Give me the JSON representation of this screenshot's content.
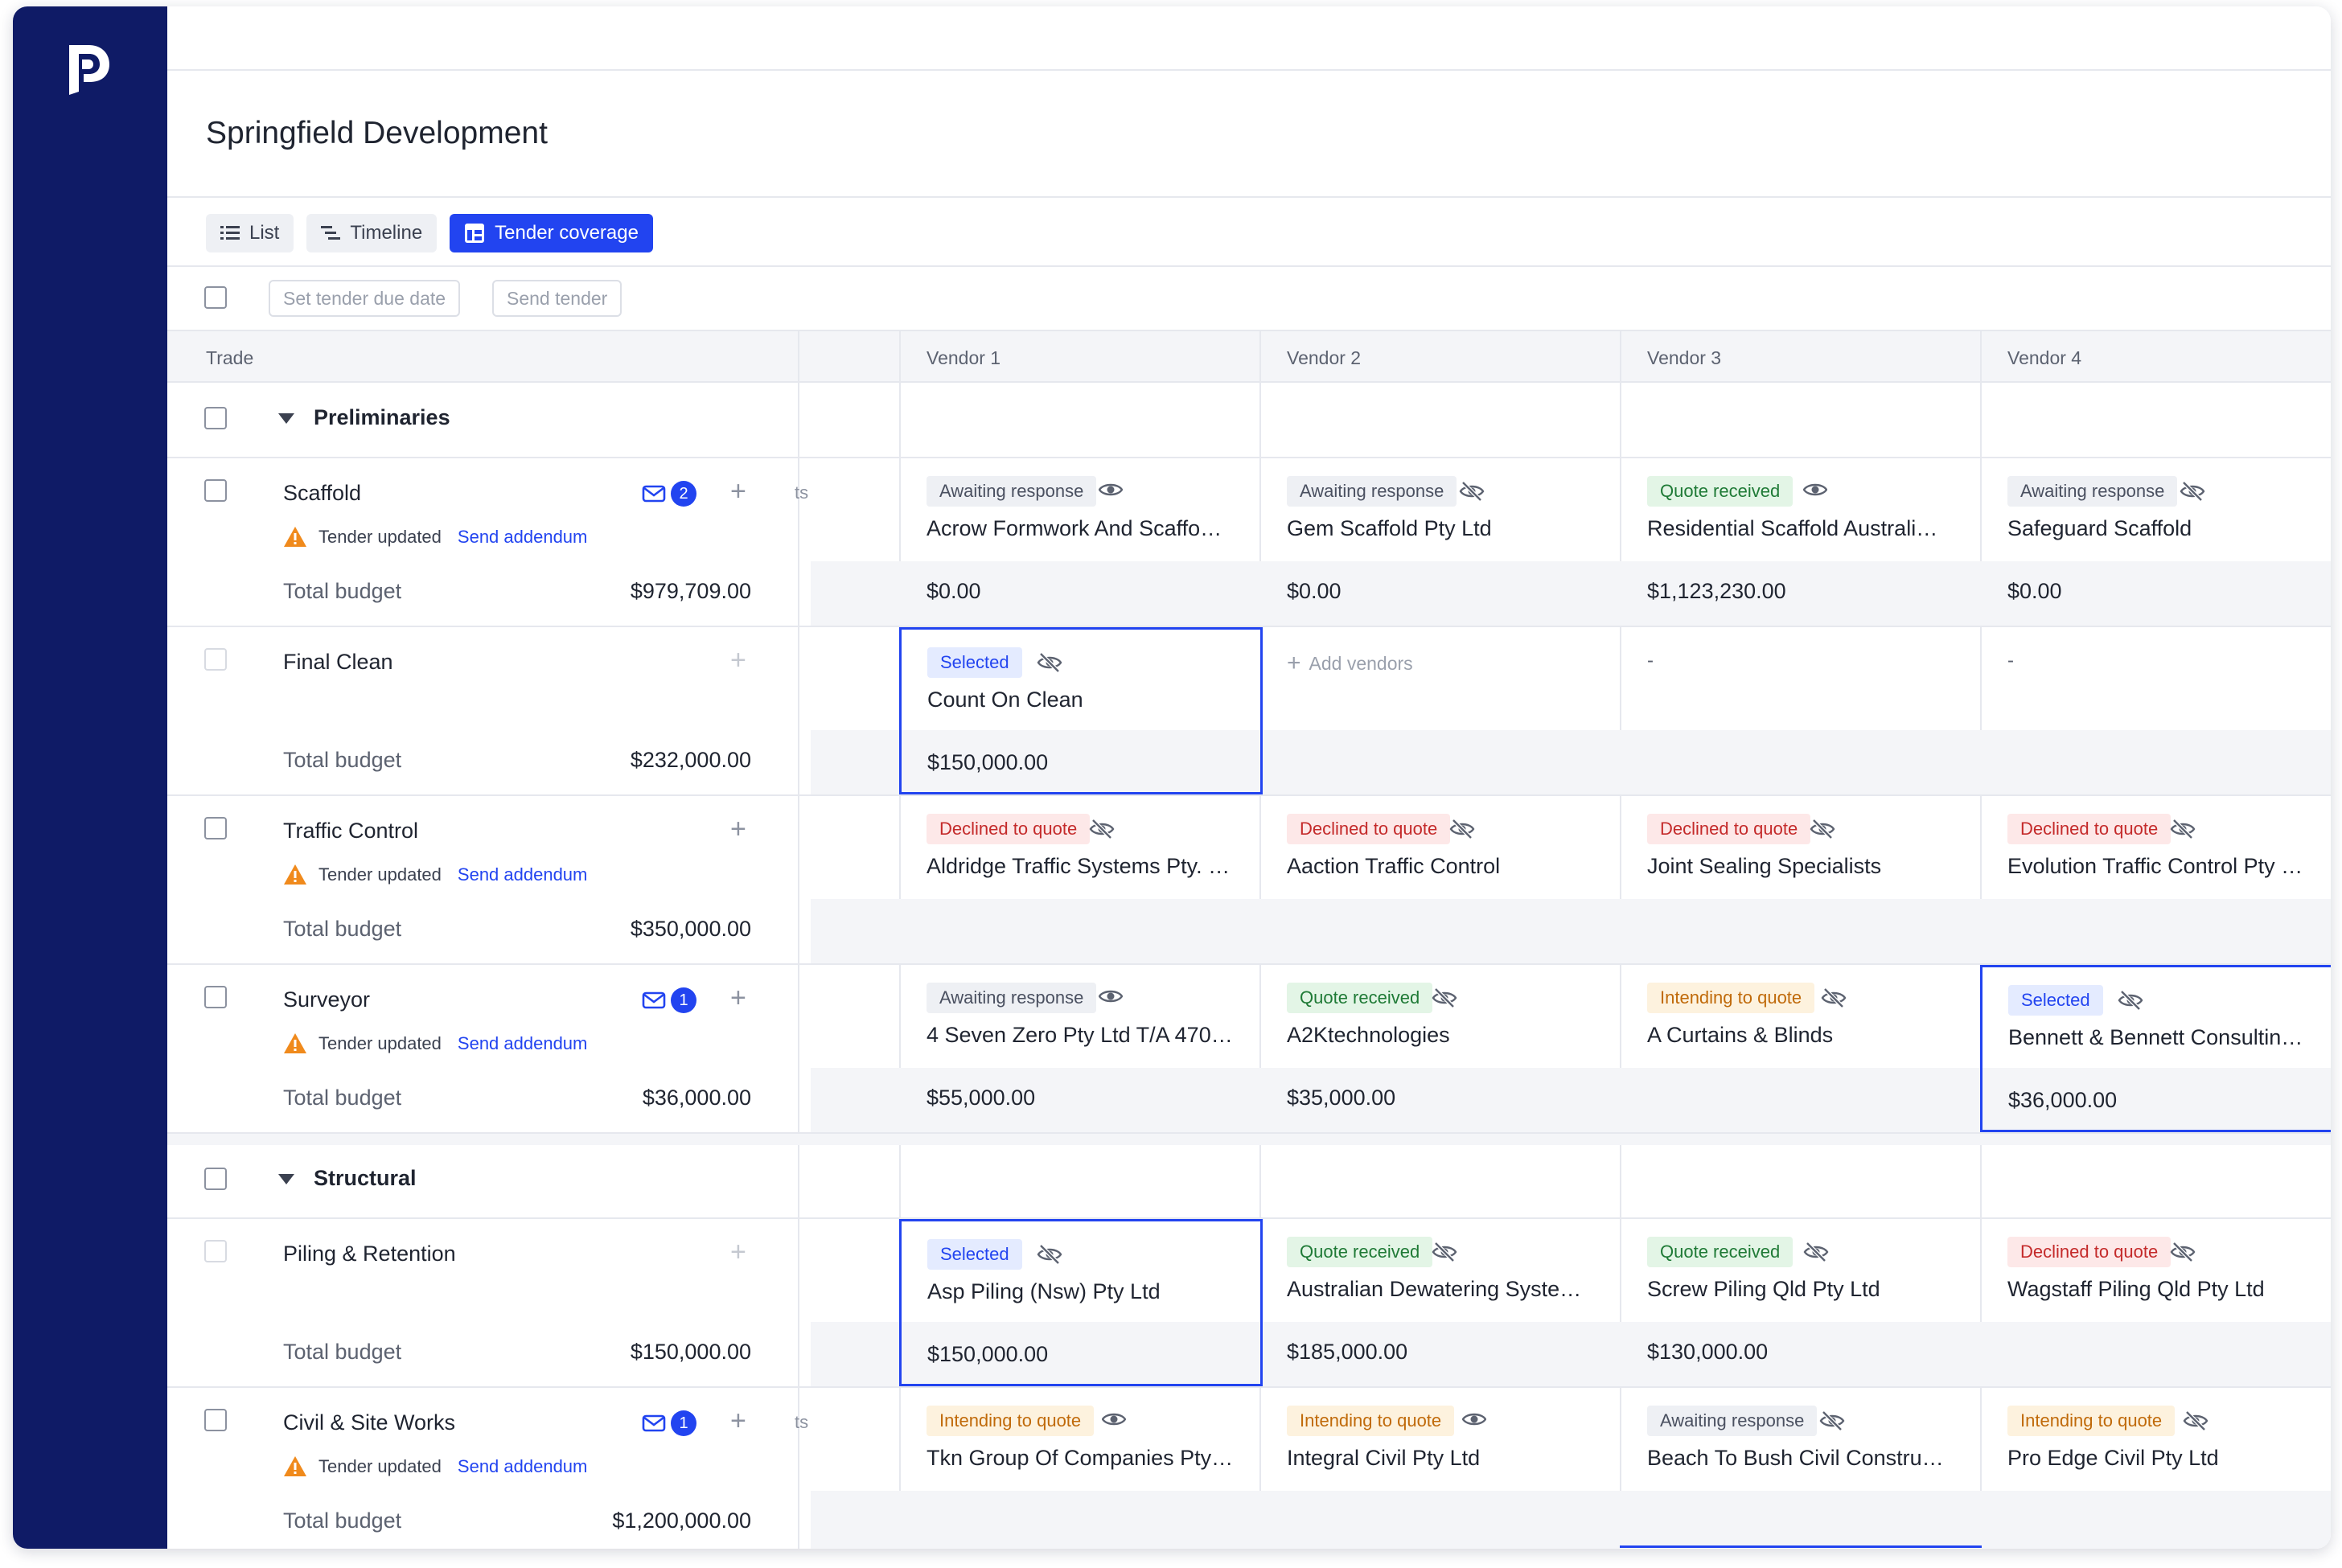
{
  "project": {
    "title": "Springfield Development"
  },
  "tabs": [
    {
      "label": "List",
      "active": false
    },
    {
      "label": "Timeline",
      "active": false
    },
    {
      "label": "Tender coverage",
      "active": true
    }
  ],
  "toolbar": {
    "set_due_date": "Set tender due date",
    "send_tender": "Send tender"
  },
  "columns": {
    "trade": "Trade",
    "vendor1": "Vendor 1",
    "vendor2": "Vendor 2",
    "vendor3": "Vendor 3",
    "vendor4": "Vendor 4"
  },
  "labels": {
    "total_budget": "Total budget",
    "tender_updated": "Tender updated",
    "send_addendum": "Send addendum",
    "add_vendors": "Add vendors",
    "dash": "-",
    "cut_off": "ts"
  },
  "groups": [
    {
      "name": "Preliminaries"
    },
    {
      "name": "Structural"
    }
  ],
  "trades": [
    {
      "name": "Scaffold",
      "total": "$979,709.00",
      "messages": "2",
      "vendors": [
        {
          "status": "Awaiting response",
          "name": "Acrow Formwork And Scaffo…",
          "value": "$0.00"
        },
        {
          "status": "Awaiting response",
          "name": "Gem Scaffold Pty Ltd",
          "value": "$0.00"
        },
        {
          "status": "Quote received",
          "name": "Residential Scaffold Australi…",
          "value": "$1,123,230.00"
        },
        {
          "status": "Awaiting response",
          "name": "Safeguard Scaffold",
          "value": "$0.00"
        }
      ]
    },
    {
      "name": "Final Clean",
      "total": "$232,000.00",
      "vendors": [
        {
          "status": "Selected",
          "name": "Count On Clean",
          "value": "$150,000.00"
        }
      ]
    },
    {
      "name": "Traffic Control",
      "total": "$350,000.00",
      "vendors": [
        {
          "status": "Declined to quote",
          "name": "Aldridge Traffic Systems Pty. …"
        },
        {
          "status": "Declined to quote",
          "name": "Aaction Traffic Control"
        },
        {
          "status": "Declined to quote",
          "name": "Joint Sealing Specialists"
        },
        {
          "status": "Declined to quote",
          "name": "Evolution Traffic Control Pty …"
        }
      ]
    },
    {
      "name": "Surveyor",
      "total": "$36,000.00",
      "messages": "1",
      "vendors": [
        {
          "status": "Awaiting response",
          "name": "4 Seven Zero Pty Ltd T/A 470…",
          "value": "$55,000.00"
        },
        {
          "status": "Quote received",
          "name": "A2Ktechnologies",
          "value": "$35,000.00"
        },
        {
          "status": "Intending to quote",
          "name": "A Curtains & Blinds"
        },
        {
          "status": "Selected",
          "name": "Bennett & Bennett Consultin…",
          "value": "$36,000.00"
        }
      ]
    },
    {
      "name": "Piling & Retention",
      "total": "$150,000.00",
      "vendors": [
        {
          "status": "Selected",
          "name": "Asp Piling (Nsw) Pty Ltd",
          "value": "$150,000.00"
        },
        {
          "status": "Quote received",
          "name": "Australian Dewatering Syste…",
          "value": "$185,000.00"
        },
        {
          "status": "Quote received",
          "name": "Screw Piling Qld Pty Ltd",
          "value": "$130,000.00"
        },
        {
          "status": "Declined to quote",
          "name": "Wagstaff Piling Qld Pty Ltd"
        }
      ]
    },
    {
      "name": "Civil & Site Works",
      "total": "$1,200,000.00",
      "messages": "1",
      "vendors": [
        {
          "status": "Intending to quote",
          "name": "Tkn Group Of Companies Pty…"
        },
        {
          "status": "Intending to quote",
          "name": "Integral Civil Pty Ltd"
        },
        {
          "status": "Awaiting response",
          "name": "Beach To Bush Civil Constru…"
        },
        {
          "status": "Intending to quote",
          "name": "Pro Edge Civil Pty Ltd"
        }
      ]
    }
  ],
  "colors": {
    "sidebar": "#0f1b66",
    "accent": "#2244f0",
    "status_awaiting": "#4a5060",
    "status_quote_received": "#1f7a36",
    "status_declined": "#c42a2a",
    "status_intending": "#c06a0a",
    "status_selected": "#2244f0",
    "warning": "#f08a1c"
  },
  "icons": [
    "logo-icon",
    "list-icon",
    "timeline-icon",
    "grid-icon",
    "caret-down-icon",
    "mail-icon",
    "plus-icon",
    "warning-icon",
    "eye-icon",
    "eye-off-icon"
  ]
}
